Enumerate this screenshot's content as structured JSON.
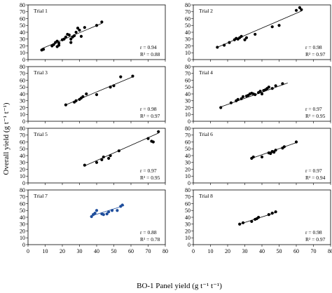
{
  "chart_data": {
    "type": "scatter",
    "xlabel": "BO-1 Panel yield (g t⁻¹ t⁻¹)",
    "ylabel": "Overall yield (g t⁻¹ t⁻¹)",
    "xlim": [
      0,
      80
    ],
    "ylim": [
      0,
      80
    ],
    "xticks": [
      "0",
      "10",
      "20",
      "30",
      "40",
      "50",
      "60",
      "70",
      "80"
    ],
    "yticks": [
      "0",
      "10",
      "20",
      "30",
      "40",
      "50",
      "60",
      "70",
      "80"
    ],
    "grid": false,
    "panels": [
      {
        "label": "Trial 1",
        "r_text": "r     = 0.94",
        "r2_text": "R² = 0.88",
        "points": [
          [
            8,
            14
          ],
          [
            9,
            15
          ],
          [
            14,
            20
          ],
          [
            15,
            22
          ],
          [
            16,
            25
          ],
          [
            17,
            19
          ],
          [
            17,
            27
          ],
          [
            18,
            21
          ],
          [
            18,
            24
          ],
          [
            20,
            29
          ],
          [
            21,
            30
          ],
          [
            22,
            33
          ],
          [
            23,
            37
          ],
          [
            24,
            36
          ],
          [
            25,
            25
          ],
          [
            25,
            30
          ],
          [
            26,
            33
          ],
          [
            27,
            35
          ],
          [
            28,
            40
          ],
          [
            29,
            46
          ],
          [
            30,
            43
          ],
          [
            31,
            34
          ],
          [
            33,
            47
          ],
          [
            40,
            50
          ],
          [
            43,
            55
          ]
        ],
        "fit": [
          [
            8,
            16
          ],
          [
            43,
            53
          ]
        ],
        "color": "#000000"
      },
      {
        "label": "Trial 2",
        "r_text": "r     = 0.98",
        "r2_text": "R² = 0.97",
        "points": [
          [
            14,
            18
          ],
          [
            18,
            21
          ],
          [
            21,
            25
          ],
          [
            24,
            29
          ],
          [
            25,
            31
          ],
          [
            26,
            30
          ],
          [
            27,
            32
          ],
          [
            28,
            34
          ],
          [
            30,
            29
          ],
          [
            31,
            32
          ],
          [
            36,
            37
          ],
          [
            46,
            48
          ],
          [
            50,
            50
          ],
          [
            60,
            72
          ],
          [
            62,
            76
          ],
          [
            63,
            73
          ]
        ],
        "fit": [
          [
            14,
            18
          ],
          [
            63,
            71
          ]
        ],
        "color": "#000000"
      },
      {
        "label": "Trial 3",
        "r_text": "r     = 0.98",
        "r2_text": "R² = 0.97",
        "points": [
          [
            22,
            24
          ],
          [
            27,
            28
          ],
          [
            28,
            30
          ],
          [
            30,
            32
          ],
          [
            31,
            34
          ],
          [
            32,
            36
          ],
          [
            34,
            40
          ],
          [
            40,
            39
          ],
          [
            48,
            50
          ],
          [
            50,
            52
          ],
          [
            54,
            65
          ],
          [
            61,
            66
          ]
        ],
        "fit": [
          [
            22,
            24
          ],
          [
            61,
            65
          ]
        ],
        "color": "#000000"
      },
      {
        "label": "Trial 4",
        "r_text": "r     = 0.97",
        "r2_text": "R² = 0.95",
        "points": [
          [
            16,
            20
          ],
          [
            22,
            27
          ],
          [
            25,
            30
          ],
          [
            26,
            32
          ],
          [
            28,
            33
          ],
          [
            29,
            36
          ],
          [
            31,
            37
          ],
          [
            32,
            38
          ],
          [
            33,
            40
          ],
          [
            34,
            41
          ],
          [
            35,
            40
          ],
          [
            36,
            39
          ],
          [
            38,
            42
          ],
          [
            39,
            44
          ],
          [
            40,
            40
          ],
          [
            41,
            45
          ],
          [
            42,
            46
          ],
          [
            43,
            48
          ],
          [
            44,
            50
          ],
          [
            46,
            48
          ],
          [
            48,
            52
          ],
          [
            52,
            55
          ]
        ],
        "fit": [
          [
            16,
            21
          ],
          [
            55,
            56
          ]
        ],
        "color": "#000000"
      },
      {
        "label": "Trial 5",
        "r_text": "r     = 0.97",
        "r2_text": "R² = 0.95",
        "points": [
          [
            33,
            26
          ],
          [
            40,
            30
          ],
          [
            43,
            34
          ],
          [
            44,
            38
          ],
          [
            47,
            36
          ],
          [
            48,
            40
          ],
          [
            53,
            47
          ],
          [
            70,
            65
          ],
          [
            72,
            61
          ],
          [
            73,
            60
          ],
          [
            76,
            75
          ]
        ],
        "fit": [
          [
            33,
            25
          ],
          [
            76,
            73
          ]
        ],
        "color": "#000000"
      },
      {
        "label": "Trial 6",
        "r_text": "r     = 0.97",
        "r2_text": "R² = 0.94",
        "points": [
          [
            34,
            36
          ],
          [
            35,
            38
          ],
          [
            40,
            38
          ],
          [
            44,
            44
          ],
          [
            45,
            43
          ],
          [
            46,
            46
          ],
          [
            47,
            45
          ],
          [
            48,
            48
          ],
          [
            52,
            51
          ],
          [
            53,
            53
          ],
          [
            60,
            60
          ]
        ],
        "fit": [
          [
            34,
            36
          ],
          [
            60,
            59
          ]
        ],
        "color": "#000000"
      },
      {
        "label": "Trial 7",
        "r_text": "r     = 0.88",
        "r2_text": "R² = 0.78",
        "points": [
          [
            37,
            41
          ],
          [
            38,
            44
          ],
          [
            39,
            46
          ],
          [
            40,
            50
          ],
          [
            43,
            45
          ],
          [
            44,
            44
          ],
          [
            46,
            45
          ],
          [
            47,
            48
          ],
          [
            49,
            50
          ],
          [
            52,
            50
          ],
          [
            54,
            56
          ],
          [
            55,
            58
          ]
        ],
        "fit": [
          [
            37,
            42
          ],
          [
            56,
            57
          ]
        ],
        "color": "#1f4e9c"
      },
      {
        "label": "Trial 8",
        "r_text": "r     = 0.98",
        "r2_text": "R² = 0.97",
        "points": [
          [
            27,
            30
          ],
          [
            29,
            32
          ],
          [
            34,
            34
          ],
          [
            36,
            37
          ],
          [
            37,
            38
          ],
          [
            38,
            40
          ],
          [
            44,
            44
          ],
          [
            46,
            46
          ],
          [
            48,
            48
          ]
        ],
        "fit": [
          [
            27,
            30
          ],
          [
            48,
            47
          ]
        ],
        "color": "#000000"
      }
    ]
  }
}
